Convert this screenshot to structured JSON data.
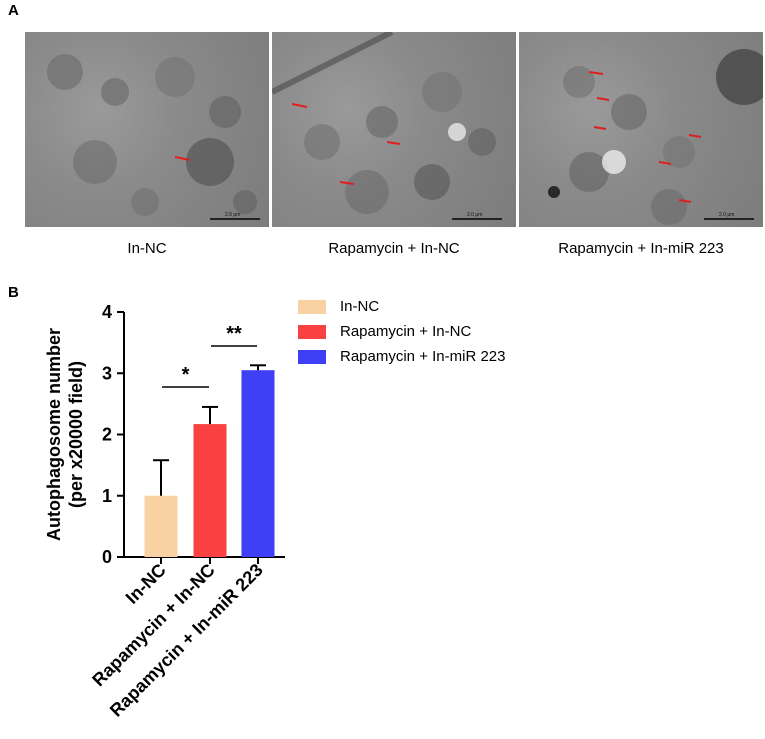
{
  "panel_a": {
    "label": "A",
    "images": [
      {
        "caption": "In-NC"
      },
      {
        "caption": "Rapamycin + In-NC"
      },
      {
        "caption": "Rapamycin + In-miR 223"
      }
    ],
    "scale_bar_text": "2.0 μm"
  },
  "panel_b": {
    "label": "B"
  },
  "chart_data": {
    "type": "bar",
    "categories": [
      "In-NC",
      "Rapamycin + In-NC",
      "Rapamycin + In-miR 223"
    ],
    "values": [
      1.0,
      2.17,
      3.05
    ],
    "errors": [
      0.58,
      0.28,
      0.08
    ],
    "colors": [
      "#f9d2a4",
      "#f94141",
      "#3f3ff5"
    ],
    "ylabel_line1": "Autophagosome number",
    "ylabel_line2": "(per x20000 field)",
    "ylim": [
      0,
      4
    ],
    "yticks": [
      "0",
      "1",
      "2",
      "3",
      "4"
    ],
    "legend": [
      "In-NC",
      "Rapamycin + In-NC",
      "Rapamycin + In-miR 223"
    ],
    "legend_placement": "top-right",
    "annotations": [
      {
        "text": "*",
        "between": [
          0,
          1
        ]
      },
      {
        "text": "**",
        "between": [
          1,
          2
        ]
      }
    ],
    "grid": false
  }
}
